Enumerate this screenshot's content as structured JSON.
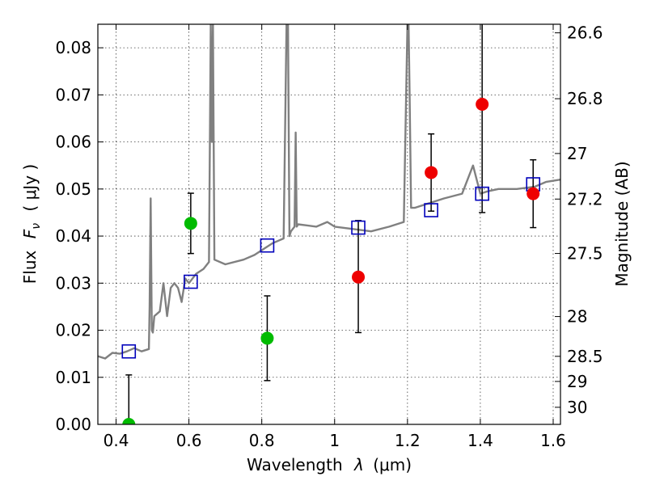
{
  "chart_data": {
    "type": "scatter",
    "xlabel": "Wavelength",
    "xlabel_symbol": "λ",
    "xlabel_unit": "(μm)",
    "ylabel": "Flux",
    "ylabel_symbol": "F",
    "ylabel_subscript": "ν",
    "ylabel_unit": "( μJy )",
    "y2label": "Magnitude (AB)",
    "xlim": [
      0.35,
      1.62
    ],
    "ylim": [
      0,
      0.085
    ],
    "grid": true,
    "x_ticks": [
      {
        "value": 0.4,
        "label": "0.4"
      },
      {
        "value": 0.6,
        "label": "0.6"
      },
      {
        "value": 0.8,
        "label": "0.8"
      },
      {
        "value": 1.0,
        "label": "1"
      },
      {
        "value": 1.2,
        "label": "1.2"
      },
      {
        "value": 1.4,
        "label": "1.4"
      },
      {
        "value": 1.6,
        "label": "1.6"
      }
    ],
    "y_ticks": [
      {
        "value": 0.0,
        "label": "0.00"
      },
      {
        "value": 0.01,
        "label": "0.01"
      },
      {
        "value": 0.02,
        "label": "0.02"
      },
      {
        "value": 0.03,
        "label": "0.03"
      },
      {
        "value": 0.04,
        "label": "0.04"
      },
      {
        "value": 0.05,
        "label": "0.05"
      },
      {
        "value": 0.06,
        "label": "0.06"
      },
      {
        "value": 0.07,
        "label": "0.07"
      },
      {
        "value": 0.08,
        "label": "0.08"
      }
    ],
    "y2_ticks": [
      {
        "mag": 26.6,
        "label": "26.6"
      },
      {
        "mag": 26.8,
        "label": "26.8"
      },
      {
        "mag": 27.0,
        "label": "27"
      },
      {
        "mag": 27.2,
        "label": "27.2"
      },
      {
        "mag": 27.5,
        "label": "27.5"
      },
      {
        "mag": 28.0,
        "label": "28"
      },
      {
        "mag": 28.5,
        "label": "28.5"
      },
      {
        "mag": 29.0,
        "label": "29"
      },
      {
        "mag": 30.0,
        "label": "30"
      }
    ],
    "colors": {
      "spectrum": "#808080",
      "model_photometry": "#0000bb",
      "green_points": "#00bb00",
      "red_points": "#ee0000",
      "error_bars": "#000000"
    },
    "spectrum": {
      "x": [
        0.35,
        0.37,
        0.39,
        0.41,
        0.43,
        0.45,
        0.47,
        0.49,
        0.492,
        0.495,
        0.498,
        0.501,
        0.505,
        0.52,
        0.53,
        0.54,
        0.55,
        0.56,
        0.57,
        0.58,
        0.59,
        0.6,
        0.62,
        0.64,
        0.655,
        0.66,
        0.663,
        0.666,
        0.67,
        0.7,
        0.75,
        0.78,
        0.8,
        0.83,
        0.86,
        0.868,
        0.872,
        0.876,
        0.88,
        0.89,
        0.893,
        0.896,
        0.9,
        0.95,
        0.98,
        1.0,
        1.05,
        1.1,
        1.15,
        1.19,
        1.2,
        1.203,
        1.206,
        1.21,
        1.22,
        1.26,
        1.3,
        1.35,
        1.38,
        1.4,
        1.42,
        1.45,
        1.5,
        1.55,
        1.58,
        1.62
      ],
      "y": [
        0.0145,
        0.014,
        0.0152,
        0.015,
        0.0155,
        0.0162,
        0.0155,
        0.016,
        0.025,
        0.048,
        0.02,
        0.0195,
        0.023,
        0.024,
        0.03,
        0.023,
        0.029,
        0.03,
        0.029,
        0.026,
        0.031,
        0.03,
        0.032,
        0.033,
        0.0345,
        0.085,
        0.06,
        0.085,
        0.035,
        0.034,
        0.035,
        0.036,
        0.037,
        0.0385,
        0.0395,
        0.085,
        0.085,
        0.04,
        0.041,
        0.042,
        0.062,
        0.042,
        0.0425,
        0.042,
        0.043,
        0.042,
        0.0415,
        0.041,
        0.042,
        0.043,
        0.085,
        0.085,
        0.07,
        0.046,
        0.046,
        0.047,
        0.048,
        0.049,
        0.055,
        0.049,
        0.0495,
        0.05,
        0.05,
        0.0505,
        0.0515,
        0.052
      ]
    },
    "model_photometry": {
      "x": [
        0.435,
        0.605,
        0.815,
        1.065,
        1.265,
        1.405,
        1.545
      ],
      "y": [
        0.0155,
        0.0303,
        0.038,
        0.0418,
        0.0455,
        0.049,
        0.051
      ]
    },
    "green_points": {
      "x": [
        0.435,
        0.605,
        0.815
      ],
      "y": [
        0.0,
        0.0427,
        0.0183
      ],
      "yerr_low": [
        0.0,
        0.0064,
        0.009
      ],
      "yerr_high": [
        0.0105,
        0.0064,
        0.009
      ]
    },
    "red_points": {
      "x": [
        1.065,
        1.265,
        1.405,
        1.545
      ],
      "y": [
        0.0313,
        0.0535,
        0.068,
        0.049
      ],
      "yerr_low": [
        0.0118,
        0.0082,
        0.023,
        0.0072
      ],
      "yerr_high": [
        0.012,
        0.0082,
        0.023,
        0.0072
      ]
    }
  }
}
